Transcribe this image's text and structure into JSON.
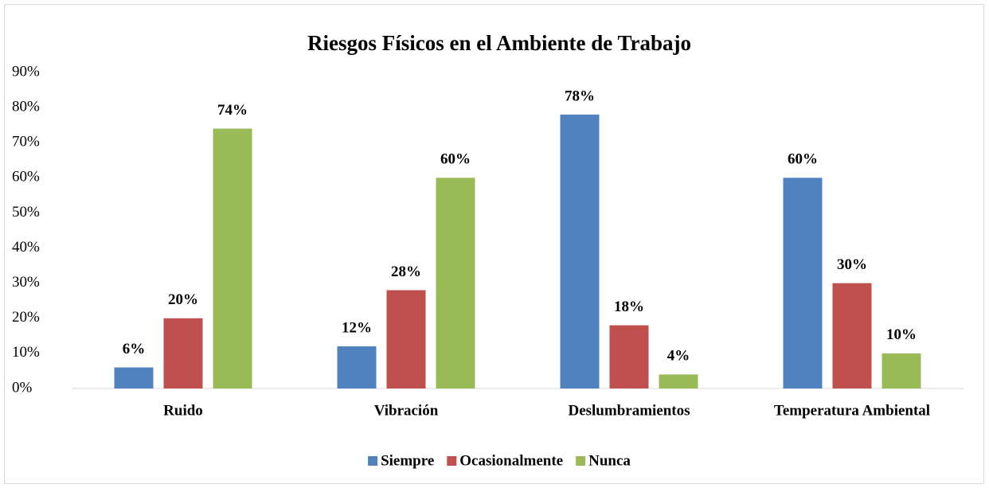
{
  "chart_data": {
    "type": "bar",
    "title": "Riesgos Físicos en el Ambiente de Trabajo",
    "categories": [
      "Ruido",
      "Vibración",
      "Deslumbramientos",
      "Temperatura Ambiental"
    ],
    "series": [
      {
        "name": "Siempre",
        "color": "#4f81bd",
        "values": [
          6,
          12,
          78,
          60
        ],
        "value_labels": [
          "6%",
          "12%",
          "78%",
          "60%"
        ]
      },
      {
        "name": "Ocasionalmente",
        "color": "#c0504d",
        "values": [
          20,
          28,
          18,
          30
        ],
        "value_labels": [
          "20%",
          "28%",
          "18%",
          "30%"
        ]
      },
      {
        "name": "Nunca",
        "color": "#9bbb59",
        "values": [
          74,
          60,
          4,
          10
        ],
        "value_labels": [
          "74%",
          "60%",
          "4%",
          "10%"
        ]
      }
    ],
    "ylim": [
      0,
      90
    ],
    "yticks": [
      {
        "value": 0,
        "label": "0%"
      },
      {
        "value": 10,
        "label": "10%"
      },
      {
        "value": 20,
        "label": "20%"
      },
      {
        "value": 30,
        "label": "30%"
      },
      {
        "value": 40,
        "label": "40%"
      },
      {
        "value": 50,
        "label": "50%"
      },
      {
        "value": 60,
        "label": "60%"
      },
      {
        "value": 70,
        "label": "70%"
      },
      {
        "value": 80,
        "label": "80%"
      },
      {
        "value": 90,
        "label": "90%"
      }
    ],
    "grid": false,
    "legend": "bottom"
  }
}
